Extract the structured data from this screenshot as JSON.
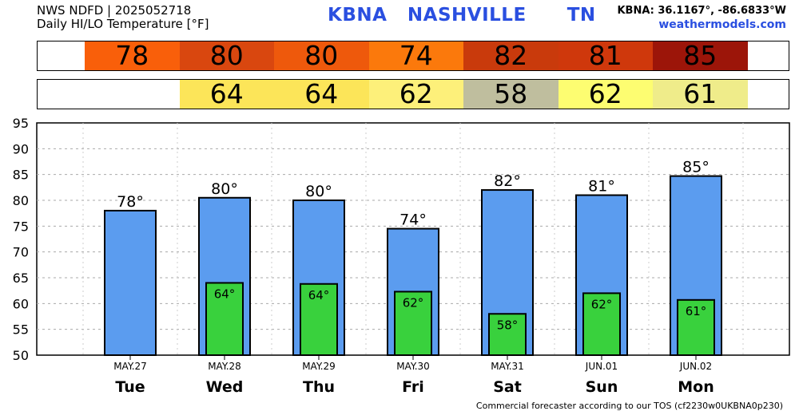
{
  "header": {
    "line1": "NWS NDFD | 2025052718",
    "line2": "Daily HI/LO Temperature [°F]",
    "station": "KBNA   NASHVILLE      TN",
    "coords": "KBNA: 36.1167°, -86.6833°W",
    "website": "weathermodels.com"
  },
  "footer": "Commercial forecaster according to our TOS (cf2230w0UKBNA0p230)",
  "colors": {
    "hi_bar": "#5b9cef",
    "lo_bar": "#39d13d",
    "hi_strip": [
      "#f95f0a",
      "#d9470f",
      "#ee590c",
      "#fb790c",
      "#c93a0c",
      "#cf380c",
      "#9c1509"
    ],
    "lo_strip": [
      null,
      "#fce559",
      "#fce559",
      "#fdf07a",
      "#bfbe9e",
      "#fdfd71",
      "#efec8a"
    ]
  },
  "chart_data": {
    "type": "bar",
    "categories": [
      "Tue",
      "Wed",
      "Thu",
      "Fri",
      "Sat",
      "Sun",
      "Mon"
    ],
    "dates": [
      "MAY.27",
      "MAY.28",
      "MAY.29",
      "MAY.30",
      "MAY.31",
      "JUN.01",
      "JUN.02"
    ],
    "series": [
      {
        "values": [
          78,
          80.5,
          80,
          74.5,
          82,
          81,
          84.7
        ],
        "labels": [
          "78°",
          "80°",
          "80°",
          "74°",
          "82°",
          "81°",
          "85°"
        ]
      },
      {
        "values": [
          null,
          64,
          63.8,
          62.3,
          58,
          62,
          60.7
        ],
        "labels": [
          null,
          "64°",
          "64°",
          "62°",
          "58°",
          "62°",
          "61°"
        ]
      }
    ],
    "strip_values": {
      "hi": [
        "78",
        "80",
        "80",
        "74",
        "82",
        "81",
        "85"
      ],
      "lo": [
        null,
        "64",
        "64",
        "62",
        "58",
        "62",
        "61"
      ]
    },
    "ylim": [
      50,
      95
    ],
    "yticks": [
      95,
      90,
      85,
      80,
      75,
      70,
      65,
      60,
      55,
      50
    ],
    "grid": true
  }
}
